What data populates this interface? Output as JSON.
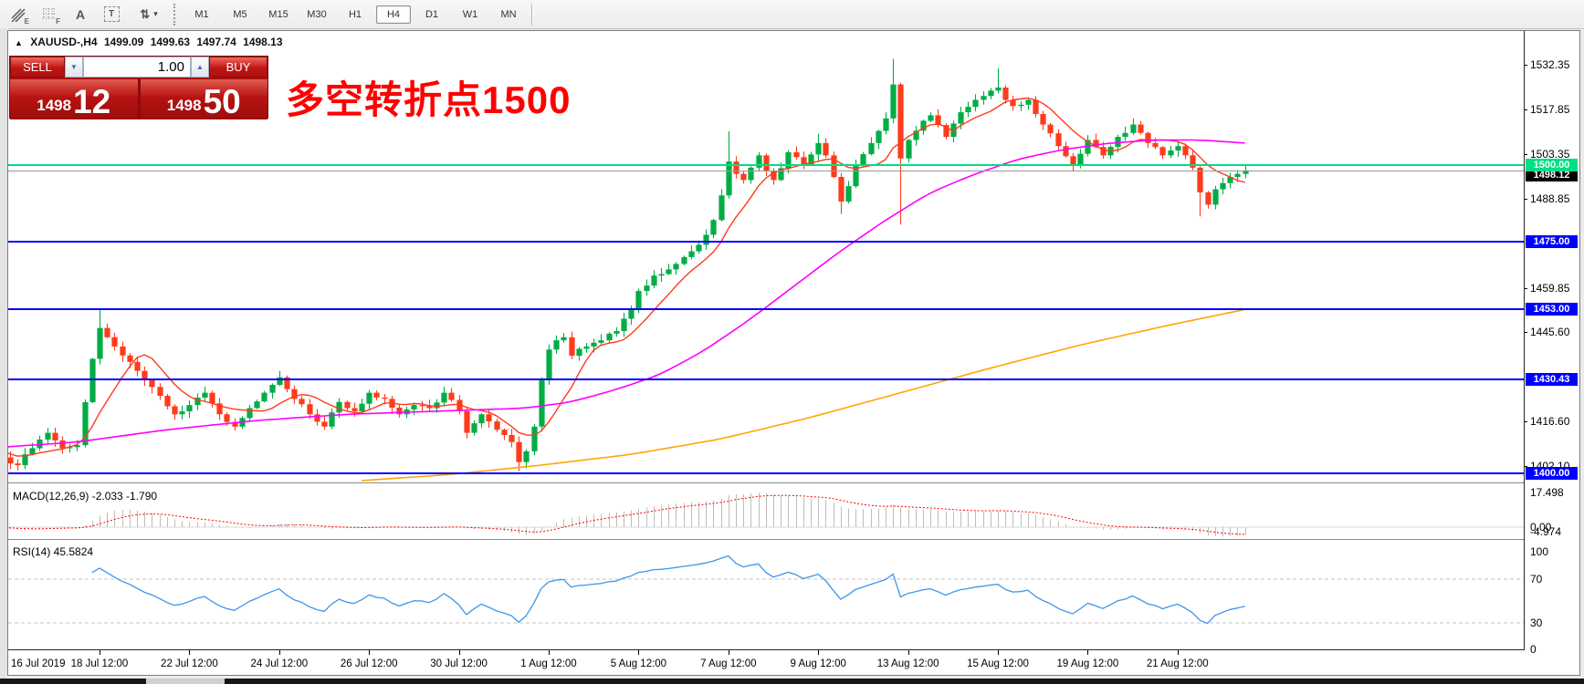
{
  "toolbar": {
    "icons": [
      {
        "name": "indicator-hatch",
        "glyph": "E"
      },
      {
        "name": "grid",
        "glyph": "F"
      },
      {
        "name": "text-label",
        "glyph": "A"
      },
      {
        "name": "text-box",
        "glyph": "T"
      },
      {
        "name": "objects-arrows",
        "glyph": "⇅"
      }
    ],
    "dropdown_caret": "▾",
    "timeframes": [
      "M1",
      "M5",
      "M15",
      "M30",
      "H1",
      "H4",
      "D1",
      "W1",
      "MN"
    ],
    "active_timeframe": "H4"
  },
  "chart_header": {
    "collapse_glyph": "▲",
    "symbol": "XAUUSD-,H4",
    "open": "1499.09",
    "high": "1499.63",
    "low": "1497.74",
    "close": "1498.13"
  },
  "trade_panel": {
    "sell_label": "SELL",
    "buy_label": "BUY",
    "volume": "1.00",
    "sell_big": "1498",
    "sell_pips": "12",
    "buy_big": "1498",
    "buy_pips": "50"
  },
  "annotation": {
    "text": "多空转折点1500",
    "color": "#FF0000"
  },
  "price_axis": {
    "ticks": [
      {
        "label": "1532.35",
        "price": 1532.35
      },
      {
        "label": "1517.85",
        "price": 1517.85
      },
      {
        "label": "1503.35",
        "price": 1503.35
      },
      {
        "label": "1488.85",
        "price": 1488.85
      },
      {
        "label": "1459.85",
        "price": 1459.85
      },
      {
        "label": "1445.60",
        "price": 1445.6
      },
      {
        "label": "1416.60",
        "price": 1416.6
      },
      {
        "label": "1402.10",
        "price": 1402.1
      }
    ]
  },
  "hlines": [
    {
      "price": 1500.0,
      "label": "1500.00",
      "color": "#00DF85"
    },
    {
      "price": 1475.0,
      "label": "1475.00",
      "color": "#0000FF"
    },
    {
      "price": 1453.0,
      "label": "1453.00",
      "color": "#0000FF"
    },
    {
      "price": 1430.43,
      "label": "1430.43",
      "color": "#0000FF"
    },
    {
      "price": 1400.0,
      "label": "1400.00",
      "color": "#0000FF"
    }
  ],
  "current_price": {
    "label": "1498.12",
    "value": 1498.12,
    "line_color": "#9A9A9A",
    "badge_bg": "#000000"
  },
  "macd_pane": {
    "label": "MACD(12,26,9) -2.033 -1.790",
    "axis_labels": [
      "17.498",
      "0.00",
      "-4.974"
    ]
  },
  "rsi_pane": {
    "label": "RSI(14) 45.5824",
    "axis_labels": [
      100,
      70,
      30,
      0
    ]
  },
  "time_axis": {
    "labels": [
      "16 Jul 2019",
      "18 Jul 12:00",
      "22 Jul 12:00",
      "24 Jul 12:00",
      "26 Jul 12:00",
      "30 Jul 12:00",
      "1 Aug 12:00",
      "5 Aug 12:00",
      "7 Aug 12:00",
      "9 Aug 12:00",
      "13 Aug 12:00",
      "15 Aug 12:00",
      "19 Aug 12:00",
      "21 Aug 12:00"
    ]
  },
  "colors": {
    "bull": "#00AD45",
    "bear": "#FF3B1C",
    "ma_fast": "#FF3B1C",
    "ma_mid": "#FF00FF",
    "ma_slow": "#FFA500",
    "rsi_line": "#3E96EC",
    "macd_hist": "#BDBDBD",
    "macd_signal": "#FF0000",
    "bg": "#FFFFFF"
  },
  "chart_data": {
    "type": "candlestick",
    "symbol": "XAUUSD-",
    "timeframe": "H4",
    "last_price": 1498.13,
    "current_ohlc": {
      "open": 1499.09,
      "high": 1499.63,
      "low": 1497.74,
      "close": 1498.13
    },
    "y_ticks": [
      1532.35,
      1517.85,
      1503.35,
      1488.85,
      1459.85,
      1445.6,
      1416.6,
      1402.1
    ],
    "x_tick_labels": [
      "16 Jul 2019",
      "18 Jul 12:00",
      "22 Jul 12:00",
      "24 Jul 12:00",
      "26 Jul 12:00",
      "30 Jul 12:00",
      "1 Aug 12:00",
      "5 Aug 12:00",
      "7 Aug 12:00",
      "9 Aug 12:00",
      "13 Aug 12:00",
      "15 Aug 12:00",
      "19 Aug 12:00",
      "21 Aug 12:00"
    ],
    "horizontal_levels": [
      1500.0,
      1475.0,
      1453.0,
      1430.43,
      1400.0
    ],
    "close_path": [
      [
        0,
        1410
      ],
      [
        2,
        1405
      ],
      [
        4,
        1402.5
      ],
      [
        6,
        1408
      ],
      [
        8,
        1413
      ],
      [
        10,
        1408
      ],
      [
        12,
        1409
      ],
      [
        14,
        1437
      ],
      [
        15,
        1447
      ],
      [
        16,
        1444
      ],
      [
        17,
        1441
      ],
      [
        19,
        1436
      ],
      [
        21,
        1430
      ],
      [
        23,
        1425
      ],
      [
        25,
        1419
      ],
      [
        27,
        1422
      ],
      [
        29,
        1426
      ],
      [
        31,
        1419
      ],
      [
        33,
        1415
      ],
      [
        35,
        1421
      ],
      [
        37,
        1426
      ],
      [
        39,
        1431
      ],
      [
        41,
        1424
      ],
      [
        43,
        1419
      ],
      [
        45,
        1415
      ],
      [
        47,
        1423
      ],
      [
        49,
        1420
      ],
      [
        51,
        1426
      ],
      [
        53,
        1424
      ],
      [
        55,
        1419
      ],
      [
        57,
        1422
      ],
      [
        59,
        1421
      ],
      [
        61,
        1426
      ],
      [
        63,
        1420
      ],
      [
        64,
        1413
      ],
      [
        66,
        1419
      ],
      [
        68,
        1414
      ],
      [
        70,
        1410
      ],
      [
        71,
        1403.5
      ],
      [
        72,
        1407
      ],
      [
        73,
        1415
      ],
      [
        74,
        1430
      ],
      [
        75,
        1440
      ],
      [
        76,
        1443
      ],
      [
        77,
        1444
      ],
      [
        78,
        1438
      ],
      [
        80,
        1441
      ],
      [
        82,
        1443
      ],
      [
        84,
        1446
      ],
      [
        86,
        1453
      ],
      [
        87,
        1459
      ],
      [
        89,
        1464
      ],
      [
        91,
        1466
      ],
      [
        93,
        1470
      ],
      [
        95,
        1474
      ],
      [
        97,
        1482
      ],
      [
        98,
        1490
      ],
      [
        99,
        1501
      ],
      [
        100,
        1497
      ],
      [
        101,
        1495
      ],
      [
        102,
        1499
      ],
      [
        103,
        1503
      ],
      [
        104,
        1498
      ],
      [
        105,
        1495
      ],
      [
        107,
        1504
      ],
      [
        109,
        1500
      ],
      [
        111,
        1507
      ],
      [
        112,
        1503
      ],
      [
        113,
        1496
      ],
      [
        114,
        1488
      ],
      [
        115,
        1493
      ],
      [
        116,
        1500
      ],
      [
        118,
        1507
      ],
      [
        120,
        1515
      ],
      [
        121,
        1526
      ],
      [
        122,
        1502
      ],
      [
        123,
        1508
      ],
      [
        124,
        1511
      ],
      [
        126,
        1516
      ],
      [
        128,
        1509
      ],
      [
        130,
        1517
      ],
      [
        132,
        1521
      ],
      [
        134,
        1524
      ],
      [
        135,
        1525
      ],
      [
        136,
        1521
      ],
      [
        137,
        1519
      ],
      [
        139,
        1521
      ],
      [
        141,
        1513
      ],
      [
        143,
        1506
      ],
      [
        145,
        1500
      ],
      [
        147,
        1508
      ],
      [
        149,
        1503
      ],
      [
        151,
        1509
      ],
      [
        153,
        1513
      ],
      [
        155,
        1507
      ],
      [
        157,
        1503
      ],
      [
        159,
        1506
      ],
      [
        161,
        1499
      ],
      [
        162,
        1491
      ],
      [
        163,
        1487
      ],
      [
        164,
        1492
      ],
      [
        165,
        1494
      ],
      [
        166,
        1496
      ],
      [
        167,
        1497
      ],
      [
        168,
        1498.13
      ]
    ],
    "wick_overrides": {
      "high": [
        [
          15,
          1453.2
        ],
        [
          99,
          1510.8
        ],
        [
          111,
          1510.0
        ],
        [
          121,
          1534.3
        ],
        [
          135,
          1531.2
        ]
      ],
      "low": [
        [
          4,
          1400.8
        ],
        [
          71,
          1400.6
        ],
        [
          114,
          1484.0
        ],
        [
          122,
          1480.5
        ],
        [
          162,
          1483.2
        ]
      ]
    },
    "moving_averages": [
      {
        "name": "fast-ma",
        "method": "sma",
        "period": 8,
        "color": "#FF3B1C"
      },
      {
        "name": "mid-ma",
        "color": "#FF00FF",
        "path": [
          [
            0,
            1408
          ],
          [
            12,
            1410
          ],
          [
            24,
            1414
          ],
          [
            36,
            1417
          ],
          [
            48,
            1419
          ],
          [
            60,
            1420
          ],
          [
            72,
            1421
          ],
          [
            78,
            1423
          ],
          [
            84,
            1427
          ],
          [
            90,
            1432
          ],
          [
            96,
            1440
          ],
          [
            102,
            1450
          ],
          [
            108,
            1461
          ],
          [
            114,
            1472
          ],
          [
            120,
            1482
          ],
          [
            126,
            1491
          ],
          [
            132,
            1497
          ],
          [
            138,
            1502
          ],
          [
            144,
            1505
          ],
          [
            150,
            1507
          ],
          [
            156,
            1508
          ],
          [
            162,
            1508
          ],
          [
            168,
            1507
          ]
        ]
      },
      {
        "name": "slow-ma",
        "color": "#FFA500",
        "path": [
          [
            50,
            1397.5
          ],
          [
            62,
            1399.5
          ],
          [
            74,
            1402.5
          ],
          [
            86,
            1406
          ],
          [
            98,
            1411
          ],
          [
            110,
            1418
          ],
          [
            122,
            1426
          ],
          [
            134,
            1434
          ],
          [
            146,
            1441.5
          ],
          [
            158,
            1448
          ],
          [
            168,
            1453
          ]
        ]
      }
    ],
    "macd": {
      "fast": 12,
      "slow": 26,
      "signal": 9,
      "current_macd": -2.033,
      "current_signal": -1.79,
      "axis_max": 17.498,
      "axis_min": -4.974
    },
    "rsi": {
      "period": 14,
      "current": 45.5824,
      "levels": [
        70,
        30
      ],
      "axis": [
        100,
        70,
        30,
        0
      ]
    }
  }
}
